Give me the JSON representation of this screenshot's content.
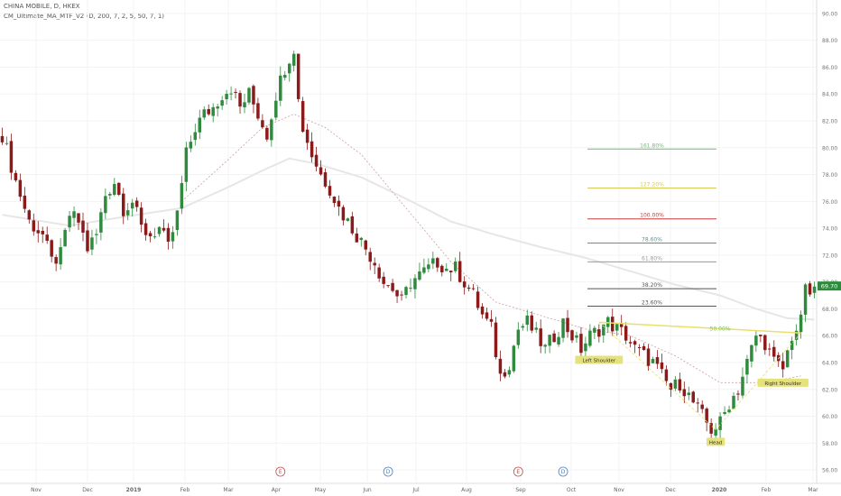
{
  "header": {
    "symbol_line": "CHINA MOBILE, D, HKEX",
    "indicator_line": "CM_Ultimate_MA_MTF_V2 (D, 200, 7, 2, 5, 50, 7, 1)"
  },
  "colors": {
    "up": "#2e8b3d",
    "down": "#8b1a1a",
    "ma200": "#e6e6e6",
    "ma50": "#c9a0a0",
    "price_tag": "#2e8b3d",
    "neckline": "#e8e06a",
    "grid": "#f3f3f3"
  },
  "chart_data": {
    "type": "candlestick",
    "y_axis": {
      "min": 55,
      "max": 91,
      "ticks": [
        "56.00",
        "58.00",
        "60.00",
        "62.00",
        "64.00",
        "66.00",
        "68.00",
        "70.00",
        "72.00",
        "74.00",
        "76.00",
        "78.00",
        "80.00",
        "82.00",
        "84.00",
        "86.00",
        "88.00",
        "90.00"
      ]
    },
    "x_axis": {
      "ticks": [
        "Nov",
        "Dec",
        "2019",
        "Feb",
        "Mar",
        "Apr",
        "May",
        "Jun",
        "Jul",
        "Aug",
        "Sep",
        "Oct",
        "Nov",
        "Dec",
        "2020",
        "Feb",
        "Mar"
      ]
    },
    "last_price": "69.70",
    "price_path": [
      [
        0,
        81.0
      ],
      [
        3,
        77.5
      ],
      [
        6,
        74.5
      ],
      [
        9,
        73.5
      ],
      [
        11,
        71.5
      ],
      [
        13,
        72.0
      ],
      [
        15,
        75.0
      ],
      [
        17,
        74.5
      ],
      [
        19,
        72.5
      ],
      [
        21,
        73.5
      ],
      [
        23,
        76.5
      ],
      [
        25,
        77.5
      ],
      [
        27,
        75.5
      ],
      [
        29,
        76.0
      ],
      [
        31,
        74.0
      ],
      [
        33,
        73.5
      ],
      [
        35,
        74.0
      ],
      [
        37,
        72.5
      ],
      [
        39,
        75.0
      ],
      [
        41,
        79.5
      ],
      [
        43,
        81.5
      ],
      [
        45,
        82.5
      ],
      [
        47,
        83.0
      ],
      [
        49,
        84.0
      ],
      [
        51,
        84.5
      ],
      [
        53,
        83.0
      ],
      [
        55,
        84.0
      ],
      [
        57,
        82.5
      ],
      [
        59,
        81.0
      ],
      [
        61,
        84.0
      ],
      [
        63,
        86.0
      ],
      [
        65,
        87.5
      ],
      [
        66,
        83.5
      ],
      [
        67,
        81.5
      ],
      [
        69,
        79.5
      ],
      [
        71,
        78.0
      ],
      [
        73,
        77.0
      ],
      [
        75,
        75.5
      ],
      [
        77,
        74.5
      ],
      [
        79,
        73.5
      ],
      [
        81,
        72.5
      ],
      [
        83,
        71.5
      ],
      [
        85,
        70.0
      ],
      [
        87,
        69.5
      ],
      [
        89,
        68.5
      ],
      [
        91,
        70.0
      ],
      [
        93,
        70.5
      ],
      [
        95,
        71.0
      ],
      [
        97,
        71.5
      ],
      [
        99,
        71.0
      ],
      [
        101,
        71.0
      ],
      [
        103,
        70.0
      ],
      [
        105,
        69.0
      ],
      [
        107,
        67.5
      ],
      [
        109,
        66.5
      ],
      [
        111,
        63.0
      ],
      [
        113,
        64.0
      ],
      [
        115,
        66.5
      ],
      [
        117,
        67.0
      ],
      [
        119,
        66.0
      ],
      [
        121,
        65.0
      ],
      [
        123,
        66.0
      ],
      [
        125,
        67.0
      ],
      [
        127,
        66.0
      ],
      [
        129,
        65.0
      ],
      [
        131,
        66.0
      ],
      [
        133,
        66.5
      ],
      [
        135,
        67.0
      ],
      [
        137,
        66.5
      ],
      [
        139,
        66.0
      ],
      [
        141,
        65.0
      ],
      [
        143,
        64.5
      ],
      [
        145,
        64.0
      ],
      [
        147,
        63.0
      ],
      [
        149,
        62.0
      ],
      [
        151,
        62.5
      ],
      [
        153,
        61.5
      ],
      [
        155,
        60.5
      ],
      [
        157,
        59.5
      ],
      [
        158,
        59.0
      ],
      [
        160,
        59.5
      ],
      [
        162,
        61.0
      ],
      [
        164,
        62.0
      ],
      [
        166,
        64.0
      ],
      [
        168,
        66.0
      ],
      [
        170,
        65.5
      ],
      [
        172,
        64.0
      ],
      [
        174,
        63.5
      ],
      [
        176,
        66.0
      ],
      [
        178,
        67.0
      ],
      [
        179,
        70.0
      ],
      [
        180,
        68.5
      ],
      [
        181,
        69.7
      ]
    ],
    "ma200_path": [
      [
        0,
        75.0
      ],
      [
        15,
        74.2
      ],
      [
        30,
        75.0
      ],
      [
        40,
        75.5
      ],
      [
        50,
        77.0
      ],
      [
        58,
        78.3
      ],
      [
        64,
        79.2
      ],
      [
        70,
        78.8
      ],
      [
        80,
        77.8
      ],
      [
        90,
        76.2
      ],
      [
        100,
        74.5
      ],
      [
        110,
        73.5
      ],
      [
        120,
        72.6
      ],
      [
        130,
        71.8
      ],
      [
        140,
        70.8
      ],
      [
        150,
        69.8
      ],
      [
        160,
        69.0
      ],
      [
        168,
        68.0
      ],
      [
        175,
        67.3
      ],
      [
        181,
        67.2
      ]
    ],
    "ma50_path": [
      [
        40,
        76.0
      ],
      [
        50,
        79.0
      ],
      [
        58,
        81.5
      ],
      [
        65,
        82.5
      ],
      [
        72,
        81.5
      ],
      [
        80,
        79.5
      ],
      [
        90,
        75.5
      ],
      [
        100,
        71.5
      ],
      [
        110,
        68.5
      ],
      [
        120,
        67.5
      ],
      [
        130,
        66.5
      ],
      [
        140,
        66.0
      ],
      [
        150,
        64.5
      ],
      [
        160,
        62.5
      ],
      [
        170,
        62.5
      ],
      [
        178,
        63.0
      ]
    ],
    "fib_levels": [
      {
        "label": "161.80%",
        "y": 79.9,
        "color": "#6cbf6c"
      },
      {
        "label": "127.20%",
        "y": 77.0,
        "color": "#d8c95a"
      },
      {
        "label": "100.00%",
        "y": 74.7,
        "color": "#c73a3a"
      },
      {
        "label": "78.60%",
        "y": 72.9,
        "color": "#3aa0a0"
      },
      {
        "label": "61.80%",
        "y": 71.5,
        "color": "#9a9a9a"
      },
      {
        "label": "38.20%",
        "y": 69.5,
        "color": "#555555"
      },
      {
        "label": "23.60%",
        "y": 68.2,
        "color": "#555555"
      }
    ],
    "neckline_label": "50.00%",
    "annotations": [
      {
        "text": "Left Shoulder",
        "i": 133,
        "y": 64.1
      },
      {
        "text": "Head",
        "i": 159,
        "y": 58.0
      },
      {
        "text": "Right Shoulder",
        "i": 174,
        "y": 62.4
      }
    ],
    "events": [
      {
        "text": "E",
        "i": 62,
        "color": "#c0504d"
      },
      {
        "text": "D",
        "i": 86,
        "color": "#4f81bd"
      },
      {
        "text": "E",
        "i": 115,
        "color": "#c0504d"
      },
      {
        "text": "D",
        "i": 125,
        "color": "#4f81bd"
      }
    ]
  }
}
